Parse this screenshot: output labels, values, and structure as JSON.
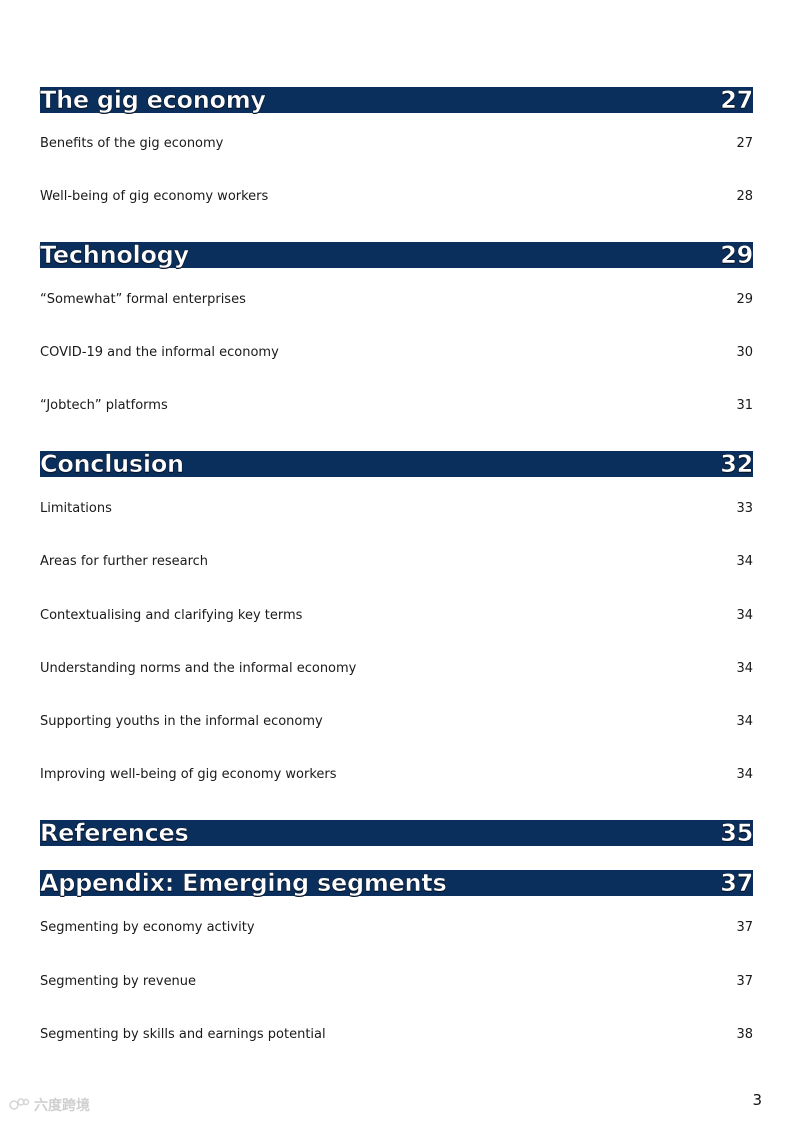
{
  "sections": [
    {
      "title": "The gig economy",
      "page": "27",
      "entries": [
        {
          "label": "Benefits of the gig economy",
          "page": "27"
        },
        {
          "label": "Well-being of gig economy workers",
          "page": "28"
        }
      ]
    },
    {
      "title": "Technology",
      "page": "29",
      "entries": [
        {
          "label": "“Somewhat” formal enterprises",
          "page": "29"
        },
        {
          "label": "COVID-19 and the informal economy",
          "page": "30"
        },
        {
          "label": "“Jobtech” platforms",
          "page": "31"
        }
      ]
    },
    {
      "title": "Conclusion",
      "page": "32",
      "entries": [
        {
          "label": "Limitations",
          "page": "33"
        },
        {
          "label": "Areas for further research",
          "page": "34"
        },
        {
          "label": "Contextualising and clarifying key terms",
          "page": "34"
        },
        {
          "label": "Understanding norms and the informal economy",
          "page": "34"
        },
        {
          "label": "Supporting youths in the informal economy",
          "page": "34"
        },
        {
          "label": "Improving well-being of gig economy workers",
          "page": "34"
        }
      ]
    },
    {
      "title": "References",
      "page": "35",
      "entries": []
    },
    {
      "title": "Appendix: Emerging segments",
      "page": "37",
      "entries": [
        {
          "label": "Segmenting by economy activity",
          "page": "37"
        },
        {
          "label": "Segmenting by revenue",
          "page": "37"
        },
        {
          "label": "Segmenting by skills and earnings potential",
          "page": "38"
        }
      ]
    }
  ],
  "footer": {
    "page_number": "3",
    "watermark_text": "六度跨境"
  },
  "colors": {
    "header_bg": "#0b2f5c",
    "header_text": "#ffffff"
  }
}
